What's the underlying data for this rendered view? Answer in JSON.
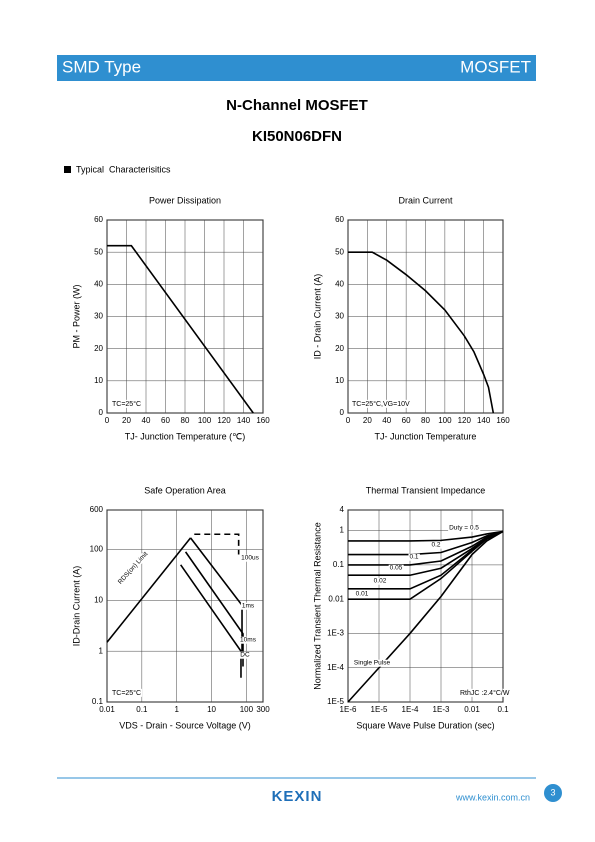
{
  "header": {
    "left": "SMD Type",
    "right": "MOSFET"
  },
  "title": "N-Channel MOSFET",
  "part": "KI50N06DFN",
  "section": "Typical  Characterisitics",
  "footer": {
    "logo": "KEXIN",
    "url": "www.kexin.com.cn",
    "page": "3"
  },
  "chart_data": [
    {
      "type": "line",
      "title": "Power Dissipation",
      "xlabel": "TJ- Junction Temperature (℃)",
      "ylabel": "PM - Power (W)",
      "x": [
        0,
        25,
        150
      ],
      "values": [
        52,
        52,
        0
      ],
      "color": "#000000",
      "xlim": [
        0,
        160
      ],
      "xticks": [
        0,
        20,
        40,
        60,
        80,
        100,
        120,
        140,
        160
      ],
      "ylim": [
        0,
        60
      ],
      "yticks": [
        0,
        10,
        20,
        30,
        40,
        50,
        60
      ],
      "grid": true,
      "annotations": [
        "TC=25°C"
      ]
    },
    {
      "type": "line",
      "title": "Drain Current",
      "xlabel": "TJ- Junction Temperature",
      "ylabel": "ID - Drain Current (A)",
      "x": [
        0,
        25,
        40,
        60,
        80,
        100,
        120,
        130,
        140,
        145,
        150
      ],
      "values": [
        50,
        50,
        47.5,
        43,
        38,
        32,
        24,
        19,
        12,
        8,
        0
      ],
      "color": "#000000",
      "xlim": [
        0,
        160
      ],
      "xticks": [
        0,
        20,
        40,
        60,
        80,
        100,
        120,
        140,
        160
      ],
      "ylim": [
        0,
        60
      ],
      "yticks": [
        0,
        10,
        20,
        30,
        40,
        50,
        60
      ],
      "grid": true,
      "annotations": [
        "TC=25°C,VG=10V"
      ]
    },
    {
      "type": "line",
      "title": "Safe Operation Area",
      "xlabel": "VDS - Drain - Source Voltage (V)",
      "ylabel": "ID-Drain Current (A)",
      "xscale": "log",
      "yscale": "log",
      "grid": true,
      "xlim": [
        0.01,
        300
      ],
      "xticks": [
        0.01,
        0.1,
        1,
        10,
        100,
        300
      ],
      "ylim": [
        0.1,
        600
      ],
      "yticks": [
        0.1,
        1,
        10,
        100,
        600
      ],
      "series": [
        {
          "name": "RDS(on) Limit",
          "color": "#000000",
          "x": [
            0.01,
            2.5
          ],
          "values": [
            1.5,
            170
          ]
        },
        {
          "name": "100us",
          "color": "#000000",
          "style": "dashed",
          "x": [
            3.2,
            60,
            60
          ],
          "values": [
            200,
            200,
            80
          ]
        },
        {
          "name": "1ms",
          "color": "#000000",
          "x": [
            2.5,
            75,
            75
          ],
          "values": [
            170,
            8,
            1
          ]
        },
        {
          "name": "10ms",
          "color": "#000000",
          "x": [
            1.8,
            80,
            80
          ],
          "values": [
            90,
            2.2,
            0.5
          ]
        },
        {
          "name": "DC",
          "color": "#000000",
          "x": [
            1.3,
            70,
            70
          ],
          "values": [
            50,
            1,
            0.3
          ]
        }
      ],
      "annotations": [
        "TC=25°C"
      ]
    },
    {
      "type": "line",
      "title": "Thermal Transient Impedance",
      "xlabel": "Square Wave Pulse Duration (sec)",
      "ylabel": "Normalized Transient Thermal Resistance",
      "xscale": "log",
      "yscale": "log",
      "grid": true,
      "xlim": [
        1e-06,
        0.1
      ],
      "xticks": [
        {
          "value": 1e-06,
          "label": "1E-6"
        },
        {
          "value": 1e-05,
          "label": "1E-5"
        },
        {
          "value": 0.0001,
          "label": "1E-4"
        },
        {
          "value": 0.001,
          "label": "1E-3"
        },
        0.01,
        0.1
      ],
      "ylim": [
        1e-05,
        4
      ],
      "yticks": [
        {
          "value": 1e-05,
          "label": "1E-5"
        },
        {
          "value": 0.0001,
          "label": "1E-4"
        },
        {
          "value": 0.001,
          "label": "1E-3"
        },
        0.01,
        0.1,
        1,
        4
      ],
      "x": [
        1e-06,
        1e-05,
        0.0001,
        0.001,
        0.01,
        0.03,
        0.1
      ],
      "series": [
        {
          "name": "Duty = 0.5",
          "color": "#000000",
          "values": [
            0.5,
            0.5,
            0.5,
            0.52,
            0.65,
            0.8,
            0.95
          ]
        },
        {
          "name": "0.2",
          "color": "#000000",
          "values": [
            0.2,
            0.2,
            0.2,
            0.23,
            0.45,
            0.7,
            0.95
          ]
        },
        {
          "name": "0.1",
          "color": "#000000",
          "values": [
            0.1,
            0.1,
            0.1,
            0.13,
            0.35,
            0.65,
            0.95
          ]
        },
        {
          "name": "0.05",
          "color": "#000000",
          "values": [
            0.05,
            0.05,
            0.05,
            0.08,
            0.3,
            0.6,
            0.95
          ]
        },
        {
          "name": "0.02",
          "color": "#000000",
          "values": [
            0.02,
            0.02,
            0.02,
            0.05,
            0.27,
            0.58,
            0.95
          ]
        },
        {
          "name": "0.01",
          "color": "#000000",
          "values": [
            0.01,
            0.01,
            0.01,
            0.04,
            0.25,
            0.57,
            0.95
          ]
        },
        {
          "name": "Single Pulse",
          "color": "#000000",
          "values": [
            1e-05,
            0.0001,
            0.001,
            0.012,
            0.2,
            0.5,
            0.95
          ]
        }
      ],
      "annotations": [
        "RthJC :2.4°C/W"
      ]
    }
  ]
}
